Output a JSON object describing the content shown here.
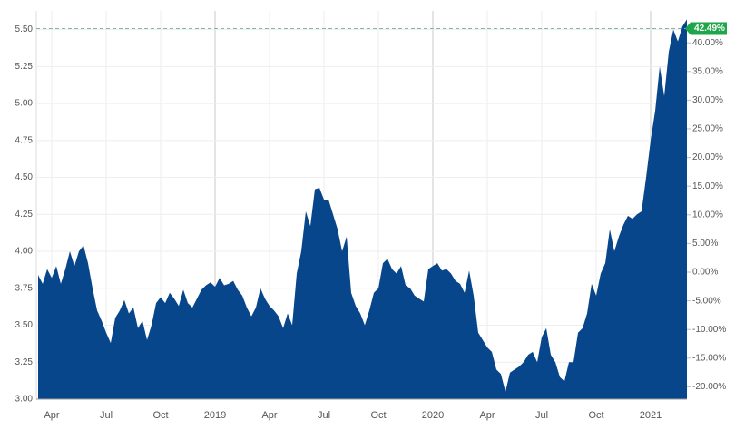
{
  "chart_data": {
    "type": "area",
    "color": "#07468a",
    "categories": [
      null,
      null,
      null,
      "Apr",
      null,
      null,
      null,
      null,
      null,
      null,
      null,
      null,
      null,
      null,
      null,
      "Jul",
      null,
      null,
      null,
      null,
      null,
      null,
      null,
      null,
      null,
      null,
      null,
      "Oct",
      null,
      null,
      null,
      null,
      null,
      null,
      null,
      null,
      null,
      null,
      null,
      "2019",
      null,
      null,
      null,
      null,
      null,
      null,
      null,
      null,
      null,
      null,
      null,
      "Apr",
      null,
      null,
      null,
      null,
      null,
      null,
      null,
      null,
      null,
      null,
      null,
      "Jul",
      null,
      null,
      null,
      null,
      null,
      null,
      null,
      null,
      null,
      null,
      null,
      "Oct",
      null,
      null,
      null,
      null,
      null,
      null,
      null,
      null,
      null,
      null,
      null,
      "2020",
      null,
      null,
      null,
      null,
      null,
      null,
      null,
      null,
      null,
      null,
      null,
      "Apr",
      null,
      null,
      null,
      null,
      null,
      null,
      null,
      null,
      null,
      null,
      null,
      "Jul",
      null,
      null,
      null,
      null,
      null,
      null,
      null,
      null,
      null,
      null,
      null,
      "Oct",
      null,
      null,
      null,
      null,
      null,
      null,
      null,
      null,
      null,
      null,
      null,
      "2021",
      null,
      null,
      null,
      null,
      null,
      null,
      null,
      null
    ],
    "values": [
      3.84,
      3.78,
      3.88,
      3.82,
      3.9,
      3.78,
      3.88,
      4.0,
      3.9,
      4.0,
      4.04,
      3.92,
      3.75,
      3.6,
      3.53,
      3.45,
      3.38,
      3.55,
      3.6,
      3.67,
      3.58,
      3.62,
      3.48,
      3.53,
      3.4,
      3.5,
      3.65,
      3.69,
      3.65,
      3.72,
      3.68,
      3.63,
      3.74,
      3.65,
      3.62,
      3.68,
      3.74,
      3.77,
      3.79,
      3.76,
      3.82,
      3.77,
      3.78,
      3.8,
      3.74,
      3.7,
      3.62,
      3.56,
      3.62,
      3.75,
      3.68,
      3.63,
      3.6,
      3.56,
      3.48,
      3.58,
      3.5,
      3.85,
      4.0,
      4.27,
      4.17,
      4.42,
      4.43,
      4.35,
      4.35,
      4.25,
      4.15,
      4.0,
      4.1,
      3.72,
      3.63,
      3.58,
      3.5,
      3.6,
      3.72,
      3.75,
      3.92,
      3.95,
      3.88,
      3.85,
      3.9,
      3.77,
      3.75,
      3.7,
      3.68,
      3.66,
      3.88,
      3.9,
      3.92,
      3.87,
      3.88,
      3.85,
      3.8,
      3.78,
      3.72,
      3.87,
      3.7,
      3.45,
      3.4,
      3.35,
      3.32,
      3.2,
      3.17,
      3.05,
      3.18,
      3.2,
      3.22,
      3.25,
      3.3,
      3.32,
      3.25,
      3.42,
      3.48,
      3.3,
      3.25,
      3.15,
      3.12,
      3.25,
      3.25,
      3.45,
      3.48,
      3.58,
      3.78,
      3.7,
      3.85,
      3.92,
      4.15,
      4.0,
      4.1,
      4.18,
      4.24,
      4.22,
      4.25,
      4.27,
      4.5,
      4.75,
      4.95,
      5.25,
      5.05,
      5.35,
      5.5,
      5.42,
      5.52,
      5.57
    ],
    "ylim": [
      3.0,
      5.6
    ],
    "yticks": [
      {
        "value": 3,
        "label": "3.00"
      },
      {
        "value": 3.25,
        "label": "3.25"
      },
      {
        "value": 3.5,
        "label": "3.50"
      },
      {
        "value": 3.75,
        "label": "3.75"
      },
      {
        "value": 4,
        "label": "4.00"
      },
      {
        "value": 4.25,
        "label": "4.25"
      },
      {
        "value": 4.5,
        "label": "4.50"
      },
      {
        "value": 4.75,
        "label": "4.75"
      },
      {
        "value": 5,
        "label": "5.00"
      },
      {
        "value": 5.25,
        "label": "5.25"
      },
      {
        "value": 5.5,
        "label": "5.50"
      }
    ],
    "y2lim": [
      -22.15,
      44.89
    ],
    "y2ticks": [
      {
        "value": -20,
        "label": "-20.00%"
      },
      {
        "value": -15,
        "label": "-15.00%"
      },
      {
        "value": -10,
        "label": "-10.00%"
      },
      {
        "value": -5,
        "label": "-5.00%"
      },
      {
        "value": 0,
        "label": "0.00%"
      },
      {
        "value": 5,
        "label": "5.00%"
      },
      {
        "value": 10,
        "label": "10.00%"
      },
      {
        "value": 15,
        "label": "15.00%"
      },
      {
        "value": 20,
        "label": "20.00%"
      },
      {
        "value": 25,
        "label": "25.00%"
      },
      {
        "value": 30,
        "label": "30.00%"
      },
      {
        "value": 35,
        "label": "35.00%"
      },
      {
        "value": 40,
        "label": "40.00%"
      }
    ],
    "annotations": [
      {
        "value": 42.49,
        "label": "42.49%"
      }
    ],
    "grid": true
  }
}
